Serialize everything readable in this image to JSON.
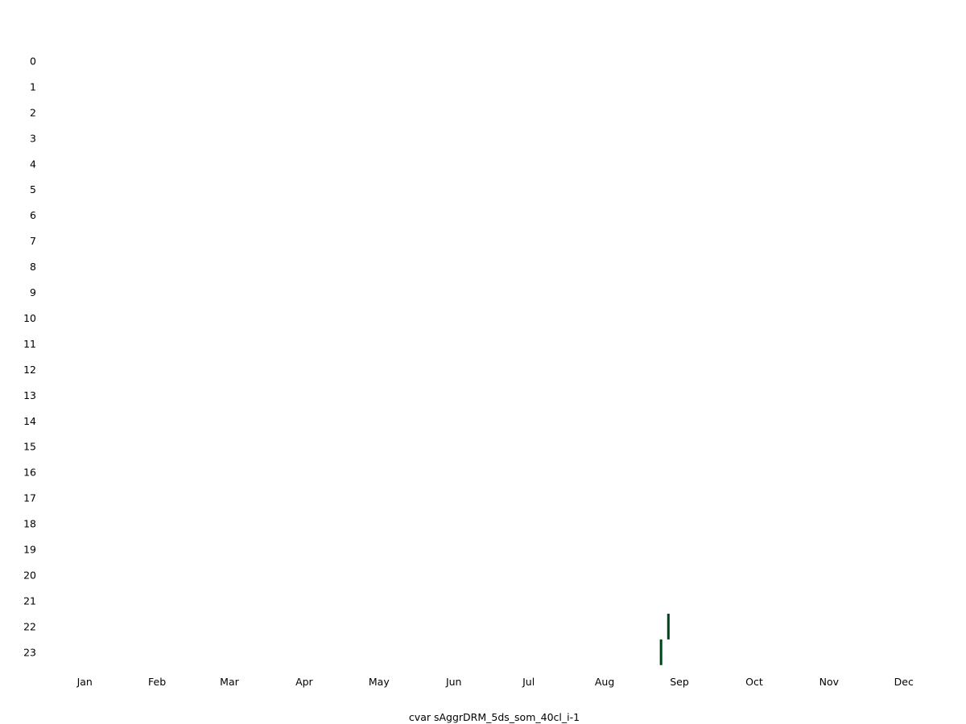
{
  "chart_data": {
    "type": "heatmap",
    "title": "",
    "xlabel": "cvar sAggrDRM_5ds_som_40cl_i-1",
    "ylabel": "",
    "x_tick_labels": [
      "Jan",
      "Feb",
      "Mar",
      "Apr",
      "May",
      "Jun",
      "Jul",
      "Aug",
      "Sep",
      "Oct",
      "Nov",
      "Dec"
    ],
    "y_tick_labels": [
      "0",
      "1",
      "2",
      "3",
      "4",
      "5",
      "6",
      "7",
      "8",
      "9",
      "10",
      "11",
      "12",
      "13",
      "14",
      "15",
      "16",
      "17",
      "18",
      "19",
      "20",
      "21",
      "22",
      "23"
    ],
    "x_range_days": [
      1,
      365
    ],
    "y_range_hours": [
      0,
      23
    ],
    "grid": false,
    "mark_color": "#00441b",
    "cells": [
      {
        "day": 254,
        "hour": 22
      },
      {
        "day": 251,
        "hour": 23
      }
    ]
  }
}
